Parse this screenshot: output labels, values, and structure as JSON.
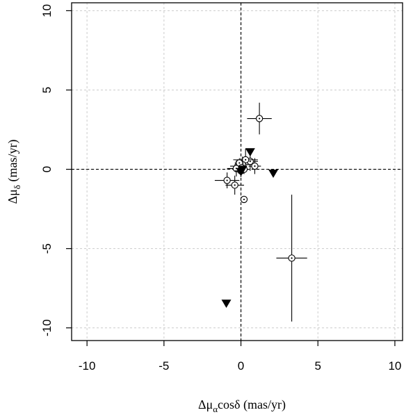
{
  "chart_data": {
    "type": "scatter",
    "title": "",
    "xlabel": {
      "prefix": "Δμ",
      "sub": "α",
      "suffix": "cosδ (mas/yr)"
    },
    "ylabel": {
      "prefix": "Δμ",
      "sub": "δ",
      "suffix": " (mas/yr)"
    },
    "xlim": [
      -11,
      10.5
    ],
    "ylim": [
      -10.8,
      10.5
    ],
    "xticks": [
      -10,
      -5,
      0,
      5,
      10
    ],
    "yticks": [
      -10,
      -5,
      0,
      5,
      10
    ],
    "xtick_labels": [
      "-10",
      "-5",
      "0",
      "5",
      "10"
    ],
    "ytick_labels": [
      "-10",
      "-5",
      "0",
      "5",
      "10"
    ],
    "grid": true,
    "zero_lines": true,
    "series": [
      {
        "marker": "circle-dot",
        "points": [
          {
            "x": 1.2,
            "y": 3.2,
            "xerr": 0.8,
            "yerr": 1.0
          },
          {
            "x": 3.3,
            "y": -5.6,
            "xerr": 1.0,
            "yerr": 4.0
          },
          {
            "x": -0.9,
            "y": -0.7,
            "xerr": 0.8,
            "yerr": 0.5
          },
          {
            "x": -0.4,
            "y": -1.0,
            "xerr": 0.6,
            "yerr": 0.6
          },
          {
            "x": 0.2,
            "y": -1.9,
            "xerr": 0,
            "yerr": 0
          },
          {
            "x": 0.9,
            "y": 0.2,
            "xerr": 0.4,
            "yerr": 0.5
          },
          {
            "x": 0.6,
            "y": 0.5,
            "xerr": 0.5,
            "yerr": 0.6
          },
          {
            "x": 0.3,
            "y": 0.6,
            "xerr": 0.8,
            "yerr": 0.7
          },
          {
            "x": 0.1,
            "y": 0.3,
            "xerr": 0.5,
            "yerr": 0.5
          },
          {
            "x": -0.2,
            "y": 0.2,
            "xerr": 0.5,
            "yerr": 0.4
          },
          {
            "x": -0.3,
            "y": 0.05,
            "xerr": 0.6,
            "yerr": 0.5
          },
          {
            "x": 0.0,
            "y": -0.1,
            "xerr": 0.4,
            "yerr": 0.4
          },
          {
            "x": 0.2,
            "y": 0.0,
            "xerr": 0.3,
            "yerr": 0.3
          },
          {
            "x": -0.1,
            "y": 0.4,
            "xerr": 0.3,
            "yerr": 0.3
          },
          {
            "x": 0.05,
            "y": 0.1,
            "xerr": 0.2,
            "yerr": 0.2
          }
        ]
      },
      {
        "marker": "triangle-down-filled",
        "points": [
          {
            "x": 0.6,
            "y": 1.1
          },
          {
            "x": 2.1,
            "y": -0.25
          },
          {
            "x": -0.95,
            "y": -8.45
          },
          {
            "x": 0.0,
            "y": -0.15
          },
          {
            "x": 0.1,
            "y": 0.0
          }
        ]
      }
    ]
  }
}
